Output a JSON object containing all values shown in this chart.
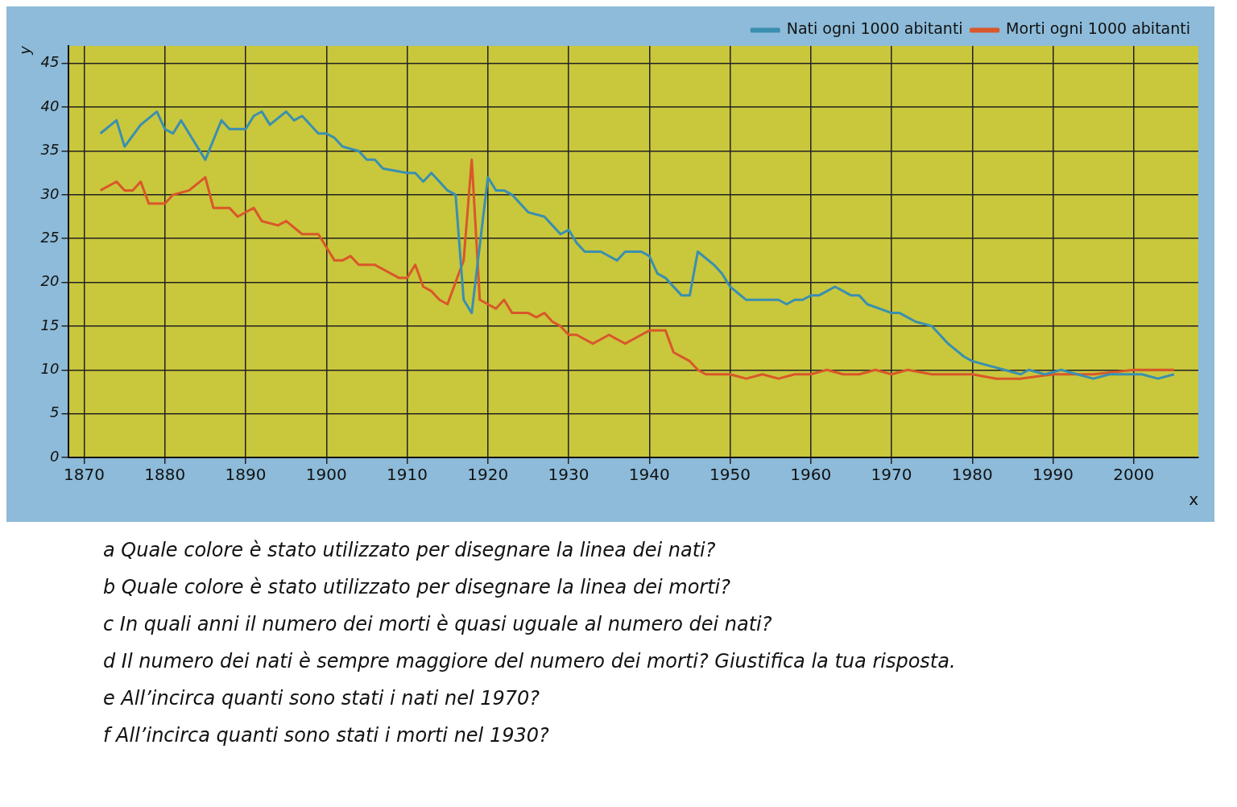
{
  "chart_data": {
    "type": "line",
    "xlabel": "x",
    "ylabel": "y",
    "xlim": [
      1868,
      2008
    ],
    "ylim": [
      0,
      47
    ],
    "xticks": [
      1870,
      1880,
      1890,
      1900,
      1910,
      1920,
      1930,
      1940,
      1950,
      1960,
      1970,
      1980,
      1990,
      2000
    ],
    "yticks": [
      0,
      5,
      10,
      15,
      20,
      25,
      30,
      35,
      40,
      45
    ],
    "grid": true,
    "legend": "top right",
    "marker": "none",
    "line_style": "solid",
    "series": [
      {
        "name": "Nati ogni 1000 abitanti",
        "color": "#3a8fb0",
        "x": [
          1872,
          1874,
          1875,
          1877,
          1879,
          1880,
          1881,
          1882,
          1885,
          1887,
          1888,
          1890,
          1891,
          1892,
          1893,
          1895,
          1896,
          1897,
          1899,
          1900,
          1901,
          1902,
          1904,
          1905,
          1906,
          1907,
          1910,
          1911,
          1912,
          1913,
          1914,
          1915,
          1916,
          1917,
          1918,
          1920,
          1921,
          1922,
          1923,
          1925,
          1927,
          1928,
          1929,
          1930,
          1931,
          1932,
          1934,
          1936,
          1937,
          1939,
          1940,
          1941,
          1942,
          1944,
          1945,
          1946,
          1948,
          1949,
          1950,
          1952,
          1954,
          1956,
          1957,
          1958,
          1959,
          1960,
          1961,
          1963,
          1964,
          1965,
          1966,
          1967,
          1970,
          1971,
          1973,
          1975,
          1977,
          1979,
          1980,
          1982,
          1984,
          1986,
          1987,
          1989,
          1991,
          1993,
          1995,
          1997,
          1999,
          2001,
          2003,
          2005
        ],
        "values": [
          37,
          38.5,
          35.5,
          38,
          39.5,
          37.5,
          37,
          38.5,
          34,
          38.5,
          37.5,
          37.5,
          39,
          39.5,
          38,
          39.5,
          38.5,
          39,
          37,
          37,
          36.5,
          35.5,
          35,
          34,
          34,
          33,
          32.5,
          32.5,
          31.5,
          32.5,
          31.5,
          30.5,
          30,
          18,
          16.5,
          32,
          30.5,
          30.5,
          30,
          28,
          27.5,
          26.5,
          25.5,
          26,
          24.5,
          23.5,
          23.5,
          22.5,
          23.5,
          23.5,
          23,
          21,
          20.5,
          18.5,
          18.5,
          23.5,
          22,
          21,
          19.5,
          18,
          18,
          18,
          17.5,
          18,
          18,
          18.5,
          18.5,
          19.5,
          19,
          18.5,
          18.5,
          17.5,
          16.5,
          16.5,
          15.5,
          15,
          13,
          11.5,
          11,
          10.5,
          10,
          9.5,
          10,
          9.5,
          10,
          9.5,
          9,
          9.5,
          9.5,
          9.5,
          9,
          9.5
        ]
      },
      {
        "name": "Morti ogni 1000 abitanti",
        "color": "#d9572a",
        "x": [
          1872,
          1873,
          1874,
          1875,
          1876,
          1877,
          1878,
          1880,
          1881,
          1883,
          1885,
          1886,
          1888,
          1889,
          1891,
          1892,
          1894,
          1895,
          1897,
          1899,
          1900,
          1901,
          1902,
          1903,
          1904,
          1906,
          1907,
          1909,
          1910,
          1911,
          1912,
          1913,
          1914,
          1915,
          1916,
          1917,
          1918,
          1919,
          1920,
          1921,
          1922,
          1923,
          1925,
          1926,
          1927,
          1928,
          1929,
          1930,
          1931,
          1932,
          1933,
          1934,
          1935,
          1936,
          1937,
          1938,
          1939,
          1940,
          1941,
          1942,
          1943,
          1945,
          1946,
          1947,
          1948,
          1950,
          1952,
          1954,
          1956,
          1958,
          1960,
          1962,
          1964,
          1966,
          1968,
          1970,
          1972,
          1975,
          1978,
          1980,
          1983,
          1986,
          1990,
          1995,
          2000,
          2003,
          2005
        ],
        "values": [
          30.5,
          31,
          31.5,
          30.5,
          30.5,
          31.5,
          29,
          29,
          30,
          30.5,
          32,
          28.5,
          28.5,
          27.5,
          28.5,
          27,
          26.5,
          27,
          25.5,
          25.5,
          24,
          22.5,
          22.5,
          23,
          22,
          22,
          21.5,
          20.5,
          20.5,
          22,
          19.5,
          19,
          18,
          17.5,
          20,
          22.5,
          34,
          18,
          17.5,
          17,
          18,
          16.5,
          16.5,
          16,
          16.5,
          15.5,
          15,
          14,
          14,
          13.5,
          13,
          13.5,
          14,
          13.5,
          13,
          13.5,
          14,
          14.5,
          14.5,
          14.5,
          12,
          11,
          10,
          9.5,
          9.5,
          9.5,
          9,
          9.5,
          9,
          9.5,
          9.5,
          10,
          9.5,
          9.5,
          10,
          9.5,
          10,
          9.5,
          9.5,
          9.5,
          9,
          9,
          9.5,
          9.5,
          10,
          10,
          10
        ]
      }
    ],
    "annotations": [
      "a Quale colore è stato utilizzato per disegnare la linea dei nati?",
      "b Quale colore è stato utilizzato per disegnare la linea dei morti?",
      "c In quali anni il numero dei morti è quasi uguale al numero dei nati?",
      "d Il numero dei nati è sempre maggiore del numero dei morti? Giustifica la tua risposta.",
      "e All’incirca quanti sono stati i nati nel 1970?",
      "f All’incirca quanti sono stati i morti nel 1930?"
    ]
  }
}
